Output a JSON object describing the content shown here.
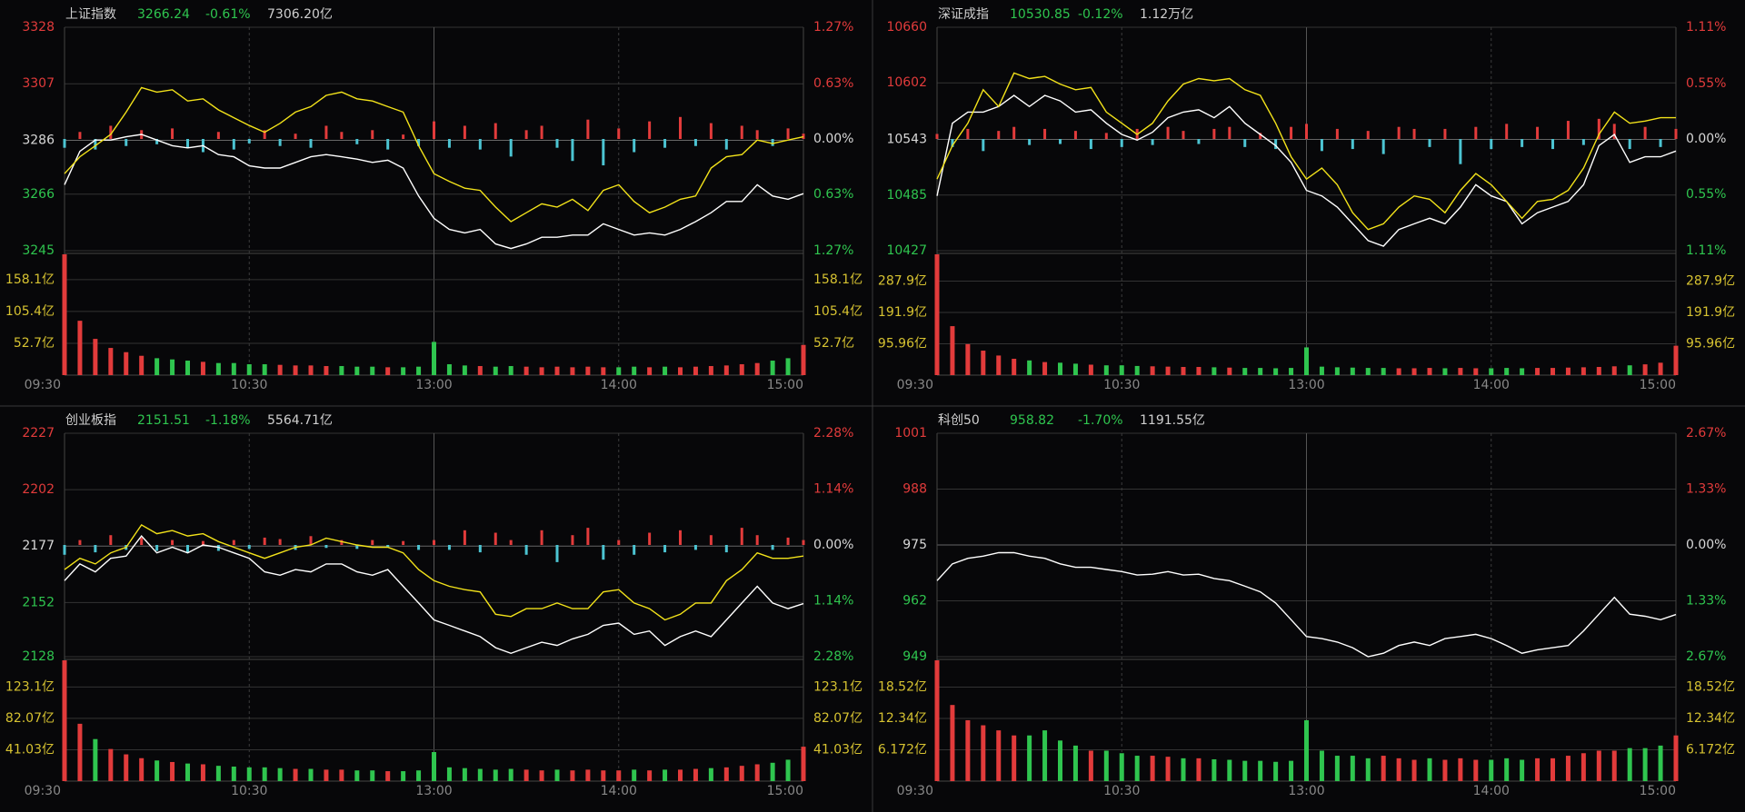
{
  "chart_data": [
    {
      "type": "line",
      "name": "上证指数",
      "price": 3266.24,
      "change": "-0.61%",
      "amount": "7306.20亿",
      "xlim": [
        0,
        240
      ],
      "xticks": [
        {
          "value": 0,
          "label": "09:30"
        },
        {
          "value": 60,
          "label": "10:30"
        },
        {
          "value": 120,
          "label": "13:00"
        },
        {
          "value": 180,
          "label": "14:00"
        },
        {
          "value": 240,
          "label": "15:00"
        }
      ],
      "ylim": [
        3245,
        3328
      ],
      "yticks": [
        3328,
        3307,
        3286,
        3266,
        3245
      ],
      "y2lim": [
        -1.27,
        1.27
      ],
      "y2ticks": [
        {
          "value": 1.27,
          "label": "1.27%"
        },
        {
          "value": 0.63,
          "label": "0.63%"
        },
        {
          "value": 0,
          "label": "0.00%"
        },
        {
          "value": -0.63,
          "label": "0.63%"
        },
        {
          "value": -1.27,
          "label": "1.27%"
        }
      ],
      "series": [
        {
          "color": "#ffffff",
          "values": [
            3269.5,
            3281.9,
            3286.1,
            3286.1,
            3287.3,
            3288.2,
            3286.1,
            3284.0,
            3283.2,
            3284.0,
            3280.7,
            3279.9,
            3276.5,
            3275.7,
            3275.7,
            3277.8,
            3279.9,
            3280.7,
            3279.9,
            3279.0,
            3277.8,
            3278.6,
            3275.7,
            3265.3,
            3257.0,
            3252.9,
            3251.6,
            3252.9,
            3247.5,
            3245.8,
            3247.5,
            3250.0,
            3250.0,
            3250.8,
            3250.8,
            3255.0,
            3252.9,
            3250.8,
            3251.6,
            3250.8,
            3252.9,
            3255.8,
            3259.1,
            3263.3,
            3263.3,
            3269.5,
            3265.3,
            3264.1,
            3266.2
          ]
        },
        {
          "color": "#f2e21a",
          "values": [
            3273.6,
            3279.9,
            3284.0,
            3288.2,
            3296.5,
            3305.6,
            3303.9,
            3304.8,
            3300.6,
            3301.4,
            3297.3,
            3294.4,
            3291.5,
            3289.0,
            3292.3,
            3296.5,
            3298.5,
            3302.7,
            3303.9,
            3301.4,
            3300.6,
            3298.5,
            3296.5,
            3284.0,
            3273.6,
            3270.7,
            3268.2,
            3267.4,
            3261.2,
            3255.8,
            3259.1,
            3262.4,
            3261.2,
            3264.1,
            3259.9,
            3267.4,
            3269.5,
            3263.3,
            3259.1,
            3261.2,
            3264.1,
            3265.3,
            3275.7,
            3279.9,
            3280.7,
            3286.1,
            3284.8,
            3286.1,
            3287.3
          ]
        }
      ],
      "strength": {
        "axis": "y2",
        "up_color": "#e23b3b",
        "down_color": "#4cc4d2",
        "values": [
          -0.1,
          0.08,
          -0.12,
          0.15,
          -0.08,
          0.1,
          -0.06,
          0.12,
          -0.1,
          -0.15,
          0.08,
          -0.12,
          -0.05,
          0.1,
          -0.08,
          0.06,
          -0.1,
          0.15,
          0.08,
          -0.06,
          0.1,
          -0.12,
          0.05,
          -0.08,
          0.2,
          -0.1,
          0.15,
          -0.12,
          0.18,
          -0.2,
          0.1,
          0.15,
          -0.1,
          -0.25,
          0.22,
          -0.3,
          0.12,
          -0.15,
          0.2,
          -0.1,
          0.25,
          -0.08,
          0.18,
          -0.12,
          0.15,
          0.1,
          -0.08,
          0.12,
          0.06
        ]
      },
      "volume": {
        "ylim": [
          0,
          200
        ],
        "yticks": [
          {
            "value": 158.1,
            "label": "158.1亿"
          },
          {
            "value": 105.4,
            "label": "105.4亿"
          },
          {
            "value": 52.7,
            "label": "52.7亿"
          }
        ],
        "up_color": "#e23b3b",
        "down_color": "#2fc54f",
        "values": [
          200,
          90,
          60,
          45,
          38,
          32,
          28,
          26,
          24,
          22,
          20,
          20,
          18,
          18,
          17,
          16,
          16,
          15,
          15,
          14,
          14,
          13,
          13,
          14,
          55,
          18,
          16,
          15,
          14,
          15,
          14,
          13,
          14,
          13,
          14,
          13,
          13,
          14,
          13,
          14,
          13,
          14,
          15,
          16,
          18,
          20,
          24,
          28,
          50
        ]
      }
    },
    {
      "type": "line",
      "name": "深证成指",
      "price": 10530.85,
      "change": "-0.12%",
      "amount": "1.12万亿",
      "xlim": [
        0,
        240
      ],
      "xticks": [
        {
          "value": 0,
          "label": "09:30"
        },
        {
          "value": 60,
          "label": "10:30"
        },
        {
          "value": 120,
          "label": "13:00"
        },
        {
          "value": 180,
          "label": "14:00"
        },
        {
          "value": 240,
          "label": "15:00"
        }
      ],
      "ylim": [
        10427,
        10660
      ],
      "yticks": [
        10660,
        10602,
        10543,
        10485,
        10427
      ],
      "y2lim": [
        -1.11,
        1.11
      ],
      "y2ticks": [
        {
          "value": 1.11,
          "label": "1.11%"
        },
        {
          "value": 0.55,
          "label": "0.55%"
        },
        {
          "value": 0,
          "label": "0.00%"
        },
        {
          "value": -0.55,
          "label": "0.55%"
        },
        {
          "value": -1.11,
          "label": "1.11%"
        }
      ],
      "series": [
        {
          "color": "#ffffff",
          "values": [
            10484.1,
            10559.9,
            10571.5,
            10571.5,
            10577.3,
            10589.0,
            10577.3,
            10589.0,
            10583.2,
            10571.5,
            10573.9,
            10559.9,
            10548.2,
            10542.4,
            10550.5,
            10565.7,
            10571.5,
            10573.9,
            10565.7,
            10577.3,
            10559.9,
            10548.2,
            10536.6,
            10519.1,
            10489.9,
            10484.1,
            10472.5,
            10455.0,
            10437.5,
            10431.7,
            10449.1,
            10455.0,
            10460.8,
            10455.0,
            10472.5,
            10495.8,
            10484.1,
            10478.3,
            10455.0,
            10466.6,
            10472.5,
            10478.3,
            10495.8,
            10536.6,
            10548.2,
            10519.1,
            10524.9,
            10524.9,
            10530.9
          ]
        },
        {
          "color": "#f2e21a",
          "values": [
            10501.6,
            10536.6,
            10559.9,
            10594.8,
            10577.3,
            10612.3,
            10606.5,
            10608.8,
            10600.7,
            10594.8,
            10597.2,
            10571.5,
            10559.9,
            10548.2,
            10559.9,
            10583.2,
            10600.7,
            10606.5,
            10604.2,
            10606.5,
            10594.8,
            10589.0,
            10559.9,
            10524.9,
            10501.6,
            10513.2,
            10495.8,
            10466.6,
            10449.1,
            10455.0,
            10472.5,
            10484.1,
            10480.6,
            10466.6,
            10489.9,
            10507.4,
            10495.8,
            10478.3,
            10460.8,
            10478.3,
            10480.6,
            10489.9,
            10513.2,
            10548.2,
            10571.5,
            10559.9,
            10562.2,
            10565.7,
            10565.7
          ]
        }
      ],
      "strength": {
        "axis": "y2",
        "up_color": "#e23b3b",
        "down_color": "#4cc4d2",
        "values": [
          0.05,
          -0.08,
          0.1,
          -0.12,
          0.08,
          0.12,
          -0.06,
          0.1,
          -0.05,
          0.08,
          -0.1,
          0.06,
          -0.08,
          0.1,
          -0.06,
          0.12,
          0.08,
          -0.05,
          0.1,
          0.12,
          -0.08,
          0.06,
          -0.1,
          0.12,
          0.15,
          -0.12,
          0.1,
          -0.1,
          0.08,
          -0.15,
          0.12,
          0.1,
          -0.08,
          0.1,
          -0.25,
          0.12,
          -0.1,
          0.15,
          -0.08,
          0.12,
          -0.1,
          0.18,
          -0.06,
          0.2,
          0.15,
          -0.1,
          0.12,
          -0.08,
          0.1
        ]
      },
      "volume": {
        "ylim": [
          0,
          370
        ],
        "yticks": [
          {
            "value": 287.9,
            "label": "287.9亿"
          },
          {
            "value": 191.9,
            "label": "191.9亿"
          },
          {
            "value": 95.96,
            "label": "95.96亿"
          }
        ],
        "up_color": "#e23b3b",
        "down_color": "#2fc54f",
        "values": [
          370,
          150,
          95,
          75,
          60,
          50,
          45,
          40,
          38,
          35,
          32,
          30,
          30,
          28,
          27,
          26,
          25,
          25,
          24,
          23,
          22,
          22,
          21,
          22,
          85,
          26,
          24,
          23,
          22,
          22,
          21,
          21,
          22,
          21,
          22,
          21,
          21,
          22,
          21,
          22,
          22,
          23,
          24,
          25,
          27,
          30,
          33,
          38,
          90
        ]
      }
    },
    {
      "type": "line",
      "name": "创业板指",
      "price": 2151.51,
      "change": "-1.18%",
      "amount": "5564.71亿",
      "xlim": [
        0,
        240
      ],
      "xticks": [
        {
          "value": 0,
          "label": "09:30"
        },
        {
          "value": 60,
          "label": "10:30"
        },
        {
          "value": 120,
          "label": "13:00"
        },
        {
          "value": 180,
          "label": "14:00"
        },
        {
          "value": 240,
          "label": "15:00"
        }
      ],
      "ylim": [
        2128,
        2227
      ],
      "yticks": [
        2227,
        2202,
        2177,
        2152,
        2128
      ],
      "y2lim": [
        -2.28,
        2.28
      ],
      "y2ticks": [
        {
          "value": 2.28,
          "label": "2.28%"
        },
        {
          "value": 1.14,
          "label": "1.14%"
        },
        {
          "value": 0,
          "label": "0.00%"
        },
        {
          "value": -1.14,
          "label": "1.14%"
        },
        {
          "value": -2.28,
          "label": "2.28%"
        }
      ],
      "series": [
        {
          "color": "#ffffff",
          "values": [
            2161.7,
            2169.1,
            2165.6,
            2171.6,
            2172.6,
            2181.5,
            2174.0,
            2176.5,
            2174.0,
            2177.5,
            2176.5,
            2174.0,
            2171.6,
            2165.6,
            2164.1,
            2166.6,
            2165.6,
            2169.1,
            2169.1,
            2165.6,
            2164.1,
            2166.6,
            2159.2,
            2151.8,
            2144.3,
            2141.9,
            2139.4,
            2136.9,
            2132.0,
            2129.5,
            2132.0,
            2134.4,
            2133.0,
            2135.9,
            2137.9,
            2141.9,
            2142.9,
            2137.9,
            2139.4,
            2133.0,
            2136.9,
            2139.4,
            2136.9,
            2144.3,
            2151.8,
            2159.2,
            2151.8,
            2149.3,
            2151.5
          ]
        },
        {
          "color": "#f2e21a",
          "values": [
            2166.6,
            2171.6,
            2169.1,
            2174.0,
            2176.5,
            2186.4,
            2182.5,
            2183.9,
            2181.5,
            2182.5,
            2179.0,
            2176.5,
            2174.0,
            2171.6,
            2174.0,
            2176.5,
            2177.5,
            2180.5,
            2179.0,
            2177.5,
            2176.5,
            2176.5,
            2174.0,
            2166.6,
            2161.7,
            2159.2,
            2157.7,
            2156.7,
            2146.8,
            2145.8,
            2149.3,
            2149.3,
            2151.8,
            2149.3,
            2149.3,
            2156.7,
            2157.7,
            2151.8,
            2149.3,
            2144.3,
            2146.8,
            2151.8,
            2151.8,
            2161.7,
            2166.6,
            2174.0,
            2171.6,
            2171.6,
            2172.6
          ]
        }
      ],
      "strength": {
        "axis": "y2",
        "up_color": "#e23b3b",
        "down_color": "#4cc4d2",
        "values": [
          -0.2,
          0.1,
          -0.15,
          0.2,
          -0.1,
          0.15,
          -0.12,
          0.1,
          -0.15,
          0.08,
          -0.12,
          0.1,
          -0.08,
          0.15,
          0.12,
          -0.1,
          0.18,
          -0.06,
          0.1,
          -0.08,
          0.1,
          -0.05,
          0.08,
          -0.1,
          0.1,
          -0.1,
          0.3,
          -0.15,
          0.25,
          0.1,
          -0.2,
          0.3,
          -0.35,
          0.2,
          0.35,
          -0.3,
          0.1,
          -0.2,
          0.25,
          -0.15,
          0.3,
          -0.1,
          0.2,
          -0.15,
          0.35,
          0.2,
          -0.1,
          0.15,
          0.1
        ]
      },
      "volume": {
        "ylim": [
          0,
          158
        ],
        "yticks": [
          {
            "value": 123.1,
            "label": "123.1亿"
          },
          {
            "value": 82.07,
            "label": "82.07亿"
          },
          {
            "value": 41.03,
            "label": "41.03亿"
          }
        ],
        "up_color": "#e23b3b",
        "down_color": "#2fc54f",
        "values": [
          158,
          75,
          55,
          42,
          35,
          30,
          27,
          25,
          23,
          22,
          20,
          19,
          18,
          18,
          17,
          16,
          16,
          15,
          15,
          14,
          14,
          13,
          13,
          14,
          38,
          18,
          17,
          16,
          15,
          16,
          15,
          14,
          15,
          14,
          15,
          14,
          14,
          15,
          14,
          15,
          15,
          16,
          17,
          18,
          20,
          22,
          24,
          28,
          45
        ]
      }
    },
    {
      "type": "line",
      "name": "科创50",
      "price": 958.82,
      "change": "-1.70%",
      "amount": "1191.55亿",
      "xlim": [
        0,
        240
      ],
      "xticks": [
        {
          "value": 0,
          "label": "09:30"
        },
        {
          "value": 60,
          "label": "10:30"
        },
        {
          "value": 120,
          "label": "13:00"
        },
        {
          "value": 180,
          "label": "14:00"
        },
        {
          "value": 240,
          "label": "15:00"
        }
      ],
      "ylim": [
        949,
        1001
      ],
      "yticks": [
        1001,
        988,
        975,
        962,
        949
      ],
      "y2lim": [
        -2.67,
        2.67
      ],
      "y2ticks": [
        {
          "value": 2.67,
          "label": "2.67%"
        },
        {
          "value": 1.33,
          "label": "1.33%"
        },
        {
          "value": 0,
          "label": "0.00%"
        },
        {
          "value": -1.33,
          "label": "1.33%"
        },
        {
          "value": -2.67,
          "label": "2.67%"
        }
      ],
      "series": [
        {
          "color": "#ffffff",
          "values": [
            966.7,
            970.6,
            971.9,
            972.4,
            973.2,
            973.2,
            972.4,
            971.9,
            970.6,
            969.8,
            969.8,
            969.3,
            968.8,
            968.0,
            968.2,
            968.8,
            968.0,
            968.2,
            967.2,
            966.7,
            965.4,
            964.1,
            961.5,
            957.6,
            953.7,
            953.2,
            952.4,
            951.1,
            949.0,
            949.8,
            951.6,
            952.4,
            951.6,
            953.2,
            953.7,
            954.2,
            953.2,
            951.6,
            949.8,
            950.6,
            951.1,
            951.6,
            955.0,
            958.9,
            962.8,
            958.9,
            958.4,
            957.6,
            958.8
          ]
        }
      ],
      "volume": {
        "ylim": [
          0,
          23.8
        ],
        "yticks": [
          {
            "value": 18.52,
            "label": "18.52亿"
          },
          {
            "value": 12.34,
            "label": "12.34亿"
          },
          {
            "value": 6.172,
            "label": "6.172亿"
          }
        ],
        "up_color": "#e23b3b",
        "down_color": "#2fc54f",
        "values": [
          23.8,
          15,
          12,
          11,
          10,
          9,
          9,
          10,
          8,
          7,
          6,
          6,
          5.5,
          5,
          5,
          4.8,
          4.5,
          4.5,
          4.3,
          4.2,
          4,
          4,
          3.8,
          4,
          12,
          6,
          5,
          5,
          4.5,
          5,
          4.5,
          4.2,
          4.5,
          4.2,
          4.5,
          4.2,
          4.2,
          4.5,
          4.2,
          4.5,
          4.5,
          5,
          5.5,
          6,
          6,
          6.5,
          6.5,
          7,
          9
        ]
      }
    }
  ]
}
